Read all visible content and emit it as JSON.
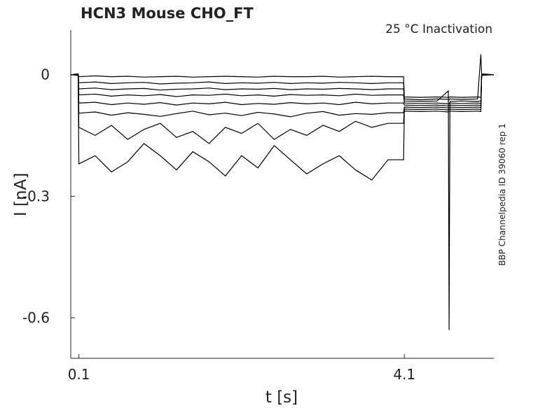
{
  "chart_data": {
    "type": "line",
    "title": "HCN3  Mouse  CHO_FT",
    "subtitle": "25 °C  Inactivation",
    "side_note": "BBP Channelpedia ID 39060 rep 1",
    "xlabel": "t [s]",
    "ylabel": "I [nA]",
    "xlim": [
      0,
      5.2
    ],
    "ylim": [
      -0.7,
      0.11
    ],
    "xticks": [
      0.1,
      4.1
    ],
    "yticks": [
      0,
      -0.3,
      -0.6
    ],
    "x": [
      0,
      0.09,
      0.1,
      0.3,
      0.5,
      0.7,
      0.9,
      1.1,
      1.3,
      1.5,
      1.7,
      1.9,
      2.1,
      2.3,
      2.5,
      2.7,
      2.9,
      3.1,
      3.3,
      3.5,
      3.7,
      3.9,
      4.09,
      4.1,
      4.3,
      4.5,
      4.64,
      4.65,
      4.66,
      4.8,
      5.0,
      5.04,
      5.05,
      5.2
    ],
    "series": [
      {
        "color": "#000000",
        "values": [
          0,
          0,
          -0.005,
          -0.003,
          -0.005,
          -0.004,
          -0.006,
          -0.005,
          -0.004,
          -0.006,
          -0.005,
          -0.004,
          -0.005,
          -0.006,
          -0.004,
          -0.005,
          -0.005,
          -0.004,
          -0.006,
          -0.005,
          -0.004,
          -0.005,
          -0.005,
          -0.055,
          -0.056,
          -0.055,
          -0.056,
          -0.056,
          -0.055,
          -0.056,
          -0.055,
          -0.056,
          0.002,
          0
        ]
      },
      {
        "color": "#000000",
        "values": [
          0,
          0.002,
          -0.02,
          -0.018,
          -0.022,
          -0.02,
          -0.019,
          -0.023,
          -0.021,
          -0.02,
          -0.018,
          -0.022,
          -0.02,
          -0.021,
          -0.019,
          -0.022,
          -0.02,
          -0.021,
          -0.019,
          -0.02,
          -0.022,
          -0.02,
          -0.02,
          -0.06,
          -0.062,
          -0.06,
          -0.061,
          -0.062,
          -0.06,
          -0.061,
          -0.06,
          0.05,
          0,
          0
        ]
      },
      {
        "color": "#000000",
        "values": [
          0,
          -0.002,
          -0.035,
          -0.033,
          -0.037,
          -0.035,
          -0.034,
          -0.038,
          -0.036,
          -0.035,
          -0.033,
          -0.037,
          -0.035,
          -0.036,
          -0.034,
          -0.037,
          -0.035,
          -0.036,
          -0.034,
          -0.035,
          -0.037,
          -0.035,
          -0.035,
          -0.065,
          -0.066,
          -0.065,
          -0.04,
          -0.63,
          -0.066,
          -0.065,
          -0.066,
          -0.065,
          -0.002,
          0
        ]
      },
      {
        "color": "#000000",
        "values": [
          0,
          0,
          -0.05,
          -0.048,
          -0.053,
          -0.05,
          -0.052,
          -0.049,
          -0.054,
          -0.05,
          -0.051,
          -0.048,
          -0.052,
          -0.05,
          -0.053,
          -0.049,
          -0.051,
          -0.05,
          -0.052,
          -0.048,
          -0.051,
          -0.05,
          -0.05,
          -0.07,
          -0.071,
          -0.07,
          -0.072,
          -0.071,
          -0.07,
          -0.071,
          -0.07,
          -0.071,
          0,
          0
        ]
      },
      {
        "color": "#000000",
        "values": [
          0,
          0,
          -0.07,
          -0.068,
          -0.074,
          -0.07,
          -0.073,
          -0.069,
          -0.075,
          -0.07,
          -0.072,
          -0.068,
          -0.074,
          -0.071,
          -0.073,
          -0.069,
          -0.072,
          -0.07,
          -0.074,
          -0.068,
          -0.072,
          -0.07,
          -0.07,
          -0.075,
          -0.076,
          -0.075,
          -0.077,
          -0.076,
          -0.075,
          -0.076,
          -0.075,
          -0.076,
          0,
          0
        ]
      },
      {
        "color": "#000000",
        "values": [
          0,
          0,
          -0.095,
          -0.092,
          -0.1,
          -0.094,
          -0.098,
          -0.103,
          -0.096,
          -0.09,
          -0.099,
          -0.095,
          -0.101,
          -0.093,
          -0.097,
          -0.104,
          -0.095,
          -0.091,
          -0.1,
          -0.096,
          -0.098,
          -0.094,
          -0.094,
          -0.08,
          -0.081,
          -0.08,
          -0.082,
          -0.081,
          -0.08,
          -0.081,
          -0.08,
          -0.081,
          0,
          0
        ]
      },
      {
        "color": "#000000",
        "values": [
          0,
          0,
          -0.13,
          -0.15,
          -0.125,
          -0.16,
          -0.135,
          -0.12,
          -0.155,
          -0.14,
          -0.17,
          -0.13,
          -0.145,
          -0.12,
          -0.16,
          -0.135,
          -0.15,
          -0.125,
          -0.14,
          -0.115,
          -0.13,
          -0.12,
          -0.12,
          -0.085,
          -0.086,
          -0.085,
          -0.087,
          -0.086,
          -0.085,
          -0.086,
          -0.085,
          -0.086,
          0,
          0
        ]
      },
      {
        "color": "#000000",
        "values": [
          0,
          0,
          -0.22,
          -0.2,
          -0.24,
          -0.215,
          -0.17,
          -0.2,
          -0.235,
          -0.19,
          -0.215,
          -0.25,
          -0.2,
          -0.23,
          -0.175,
          -0.21,
          -0.245,
          -0.22,
          -0.2,
          -0.235,
          -0.26,
          -0.21,
          -0.21,
          -0.09,
          -0.091,
          -0.09,
          -0.092,
          -0.091,
          -0.09,
          -0.091,
          -0.09,
          -0.091,
          0,
          0
        ]
      }
    ]
  }
}
